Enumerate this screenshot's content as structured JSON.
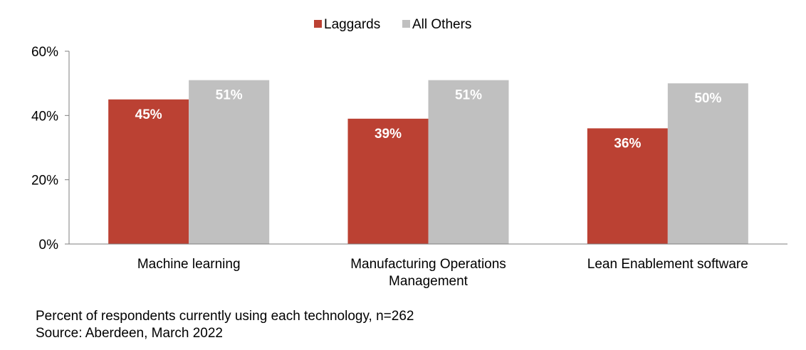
{
  "chart_data": {
    "type": "bar",
    "title": "",
    "xlabel": "",
    "ylabel": "",
    "categories": [
      [
        "Machine learning"
      ],
      [
        "Manufacturing Operations",
        "Management"
      ],
      [
        "Lean Enablement software"
      ]
    ],
    "series": [
      {
        "name": "Laggards",
        "color": "#bb4133",
        "values": [
          45,
          39,
          36
        ],
        "labels": [
          "45%",
          "39%",
          "36%"
        ]
      },
      {
        "name": "All Others",
        "color": "#c0c0c0",
        "values": [
          51,
          51,
          50
        ],
        "labels": [
          "51%",
          "51%",
          "50%"
        ]
      }
    ],
    "ylim": [
      0,
      60
    ],
    "yticks": [
      0,
      20,
      40,
      60
    ],
    "ytick_labels": [
      "0%",
      "20%",
      "40%",
      "60%"
    ],
    "legend_position": "top-center",
    "grid": false
  },
  "footnote": {
    "note": "Percent of respondents currently using each technology, n=262",
    "source": "Source: Aberdeen, March 2022"
  }
}
